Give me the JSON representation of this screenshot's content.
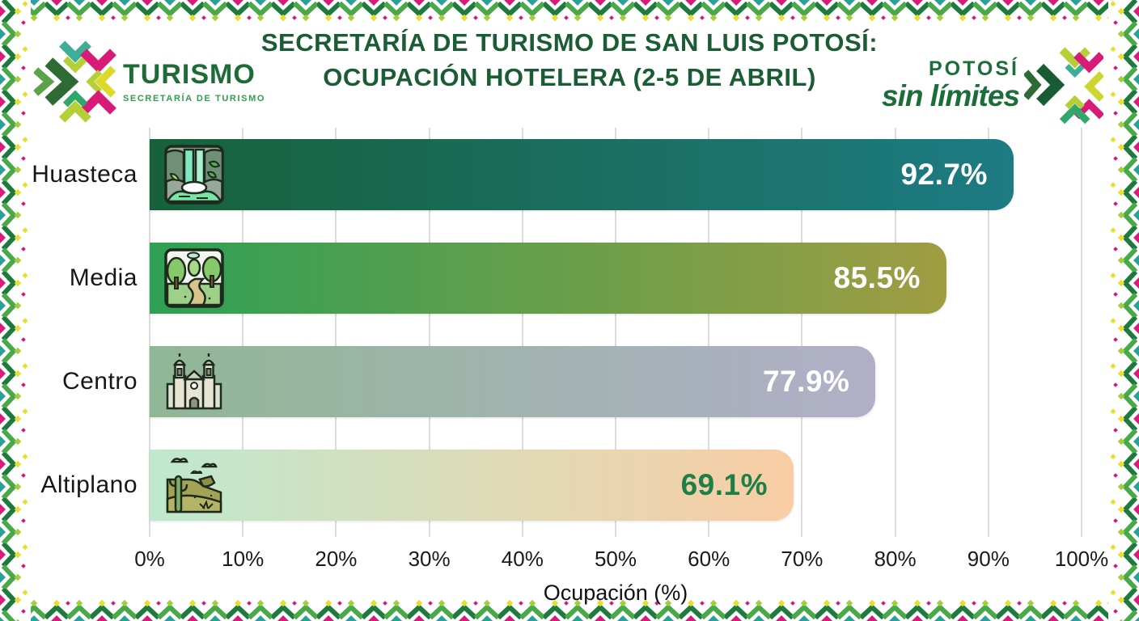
{
  "page": {
    "background": "#ffffff"
  },
  "border": {
    "style": "mexican-textile-zigzag",
    "palette": [
      "#1f7a3d",
      "#49a847",
      "#a6ce39",
      "#e8df2e",
      "#d81b77",
      "#2aa198",
      "#ffffff"
    ]
  },
  "header": {
    "title_line1": "SECRETARÍA DE TURISMO DE SAN LUIS POTOSÍ:",
    "title_line2": "OCUPACIÓN HOTELERA (2-5 DE ABRIL)",
    "title_color": "#1a5c33"
  },
  "logo_left": {
    "brand": "TURISMO",
    "subtitle": "SECRETARÍA DE TURISMO",
    "mark_icon": "turismo-x-mark"
  },
  "logo_right": {
    "line1": "POTOSÍ",
    "line2": "sin límites",
    "mark_icon": "potosi-x-mark"
  },
  "chart_data": {
    "type": "bar",
    "orientation": "horizontal",
    "title": "Ocupación hotelera (2-5 de abril)",
    "categories": [
      "Huasteca",
      "Media",
      "Centro",
      "Altiplano"
    ],
    "values": [
      92.7,
      85.5,
      77.9,
      69.1
    ],
    "value_labels": [
      "92.7%",
      "85.5%",
      "77.9%",
      "69.1%"
    ],
    "value_label_colors": [
      "#ffffff",
      "#ffffff",
      "#ffffff",
      "#1f7f46"
    ],
    "bar_gradients": [
      [
        "#17613b",
        "#1d7b83"
      ],
      [
        "#2ea055",
        "#9f9d42"
      ],
      [
        "#90b795",
        "#b1afc8"
      ],
      [
        "#bfe9cd",
        "#f9cda4"
      ]
    ],
    "icons": [
      "waterfall-icon",
      "forest-path-icon",
      "cathedral-icon",
      "desert-cactus-icon"
    ],
    "xlabel": "Ocupación (%)",
    "x_ticks": [
      "0%",
      "10%",
      "20%",
      "30%",
      "40%",
      "50%",
      "60%",
      "70%",
      "80%",
      "90%",
      "100%"
    ],
    "xlim": [
      0,
      100
    ],
    "grid": true,
    "gridline_color": "#dcdcdc"
  }
}
